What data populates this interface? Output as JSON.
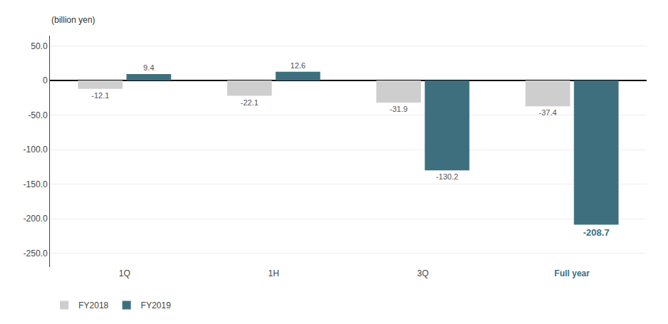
{
  "chart_data": {
    "type": "bar",
    "categories": [
      "1Q",
      "1H",
      "3Q",
      "Full year"
    ],
    "series": [
      {
        "name": "FY2018",
        "color": "#cecece",
        "values": [
          -12.1,
          -22.1,
          -31.9,
          -37.4
        ]
      },
      {
        "name": "FY2019",
        "color": "#3d6f7f",
        "values": [
          9.4,
          12.6,
          -130.2,
          -208.7
        ]
      }
    ],
    "ylabel": "(billion yen)",
    "ylim": [
      -270,
      65
    ],
    "yticks": [
      {
        "value": 50,
        "label": "50.0"
      },
      0,
      {
        "value": -50,
        "label": "-50.0"
      },
      {
        "value": -100,
        "label": "-100.0"
      },
      {
        "value": -150,
        "label": "-150.0"
      },
      {
        "value": -200,
        "label": "-200.0"
      },
      {
        "value": -250,
        "label": "-250.0"
      }
    ],
    "grid": true,
    "legend": "lower left",
    "data_labels": true
  }
}
